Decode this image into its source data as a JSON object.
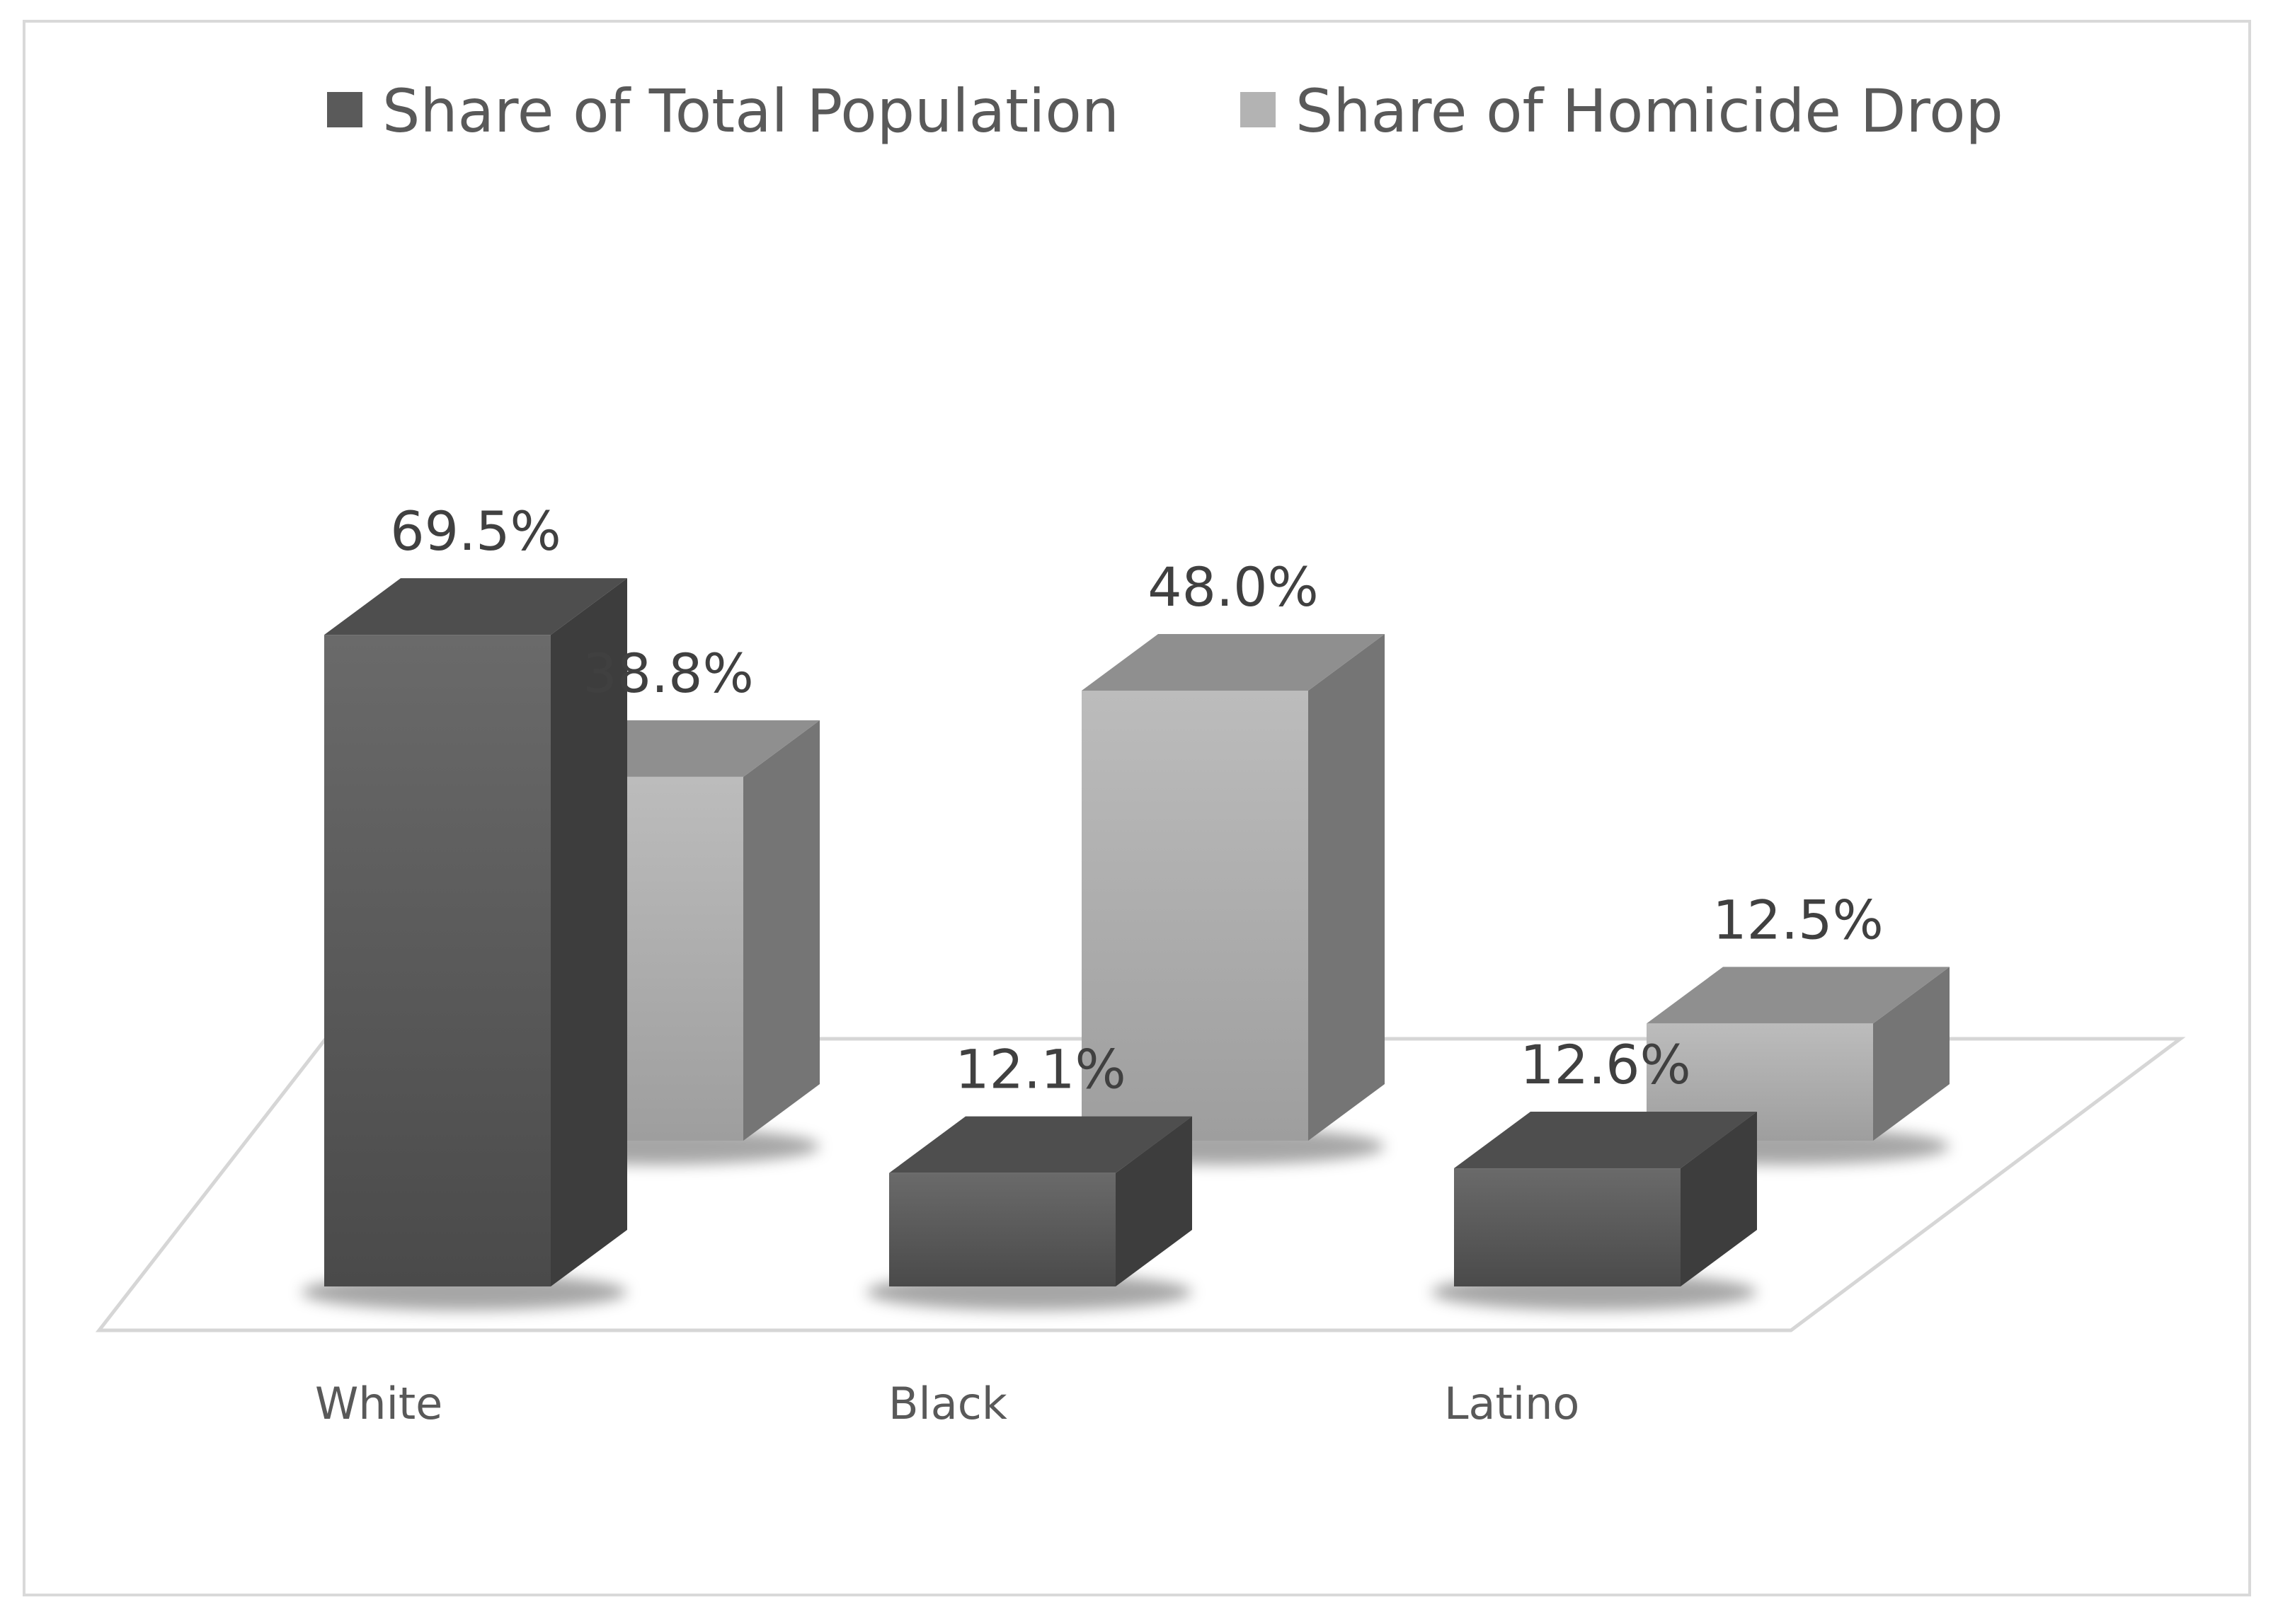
{
  "chart_data": {
    "type": "bar",
    "title": "",
    "xlabel": "",
    "ylabel": "",
    "ylim": [
      0,
      100
    ],
    "grid": false,
    "legend_position": "top",
    "categories": [
      "White",
      "Black",
      "Latino"
    ],
    "series": [
      {
        "name": "Share of Total Population",
        "values": [
          69.5,
          12.1,
          12.6
        ],
        "labels": [
          "69.5%",
          "12.1%",
          "12.6%"
        ],
        "color": "#5a5a5a"
      },
      {
        "name": "Share of Homicide Drop",
        "values": [
          38.8,
          48.0,
          12.5
        ],
        "labels": [
          "38.8%",
          "48.0%",
          "12.5%"
        ],
        "color": "#b3b3b3"
      }
    ]
  }
}
